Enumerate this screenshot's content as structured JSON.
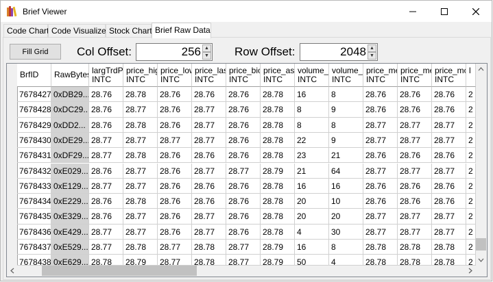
{
  "window": {
    "title": "Brief Viewer"
  },
  "tabs": [
    "Code Chart",
    "Code Visualizer",
    "Stock Chart",
    "Brief Raw Data"
  ],
  "toolbar": {
    "fill_grid": "Fill Grid",
    "col_offset_label": "Col Offset:",
    "col_offset_value": "256",
    "row_offset_label": "Row Offset:",
    "row_offset_value": "2048"
  },
  "grid": {
    "columns": [
      {
        "name": "BrfID",
        "type": ""
      },
      {
        "name": "RawBytes",
        "type": ""
      },
      {
        "name": "largTrdPr",
        "type": "INTC"
      },
      {
        "name": "price_hig",
        "type": "INTC"
      },
      {
        "name": "price_low",
        "type": "INTC"
      },
      {
        "name": "price_las",
        "type": "INTC"
      },
      {
        "name": "price_bic",
        "type": "INTC"
      },
      {
        "name": "price_ask",
        "type": "INTC"
      },
      {
        "name": "volume_l",
        "type": "INTC"
      },
      {
        "name": "volume_a",
        "type": "INTC"
      },
      {
        "name": "price_me",
        "type": "INTC"
      },
      {
        "name": "price_me",
        "type": "INTC"
      },
      {
        "name": "price_mc",
        "type": "INTC"
      },
      {
        "name": "l",
        "type": ""
      }
    ],
    "rows": [
      [
        "7678427",
        "0xDB29...",
        "28.76",
        "28.78",
        "28.76",
        "28.76",
        "28.76",
        "28.78",
        "16",
        "8",
        "28.76",
        "28.76",
        "28.76",
        "2"
      ],
      [
        "7678428",
        "0xDC29...",
        "28.76",
        "28.77",
        "28.76",
        "28.77",
        "28.76",
        "28.78",
        "8",
        "9",
        "28.76",
        "28.76",
        "28.76",
        "2"
      ],
      [
        "7678429",
        "0xDD2...",
        "28.76",
        "28.78",
        "28.76",
        "28.77",
        "28.76",
        "28.78",
        "8",
        "8",
        "28.77",
        "28.77",
        "28.77",
        "2"
      ],
      [
        "7678430",
        "0xDE29...",
        "28.77",
        "28.77",
        "28.77",
        "28.77",
        "28.76",
        "28.78",
        "22",
        "9",
        "28.77",
        "28.77",
        "28.77",
        "2"
      ],
      [
        "7678431",
        "0xDF29...",
        "28.77",
        "28.78",
        "28.76",
        "28.76",
        "28.76",
        "28.78",
        "23",
        "21",
        "28.76",
        "28.76",
        "28.76",
        "2"
      ],
      [
        "7678432",
        "0xE029...",
        "28.76",
        "28.77",
        "28.76",
        "28.77",
        "28.77",
        "28.79",
        "21",
        "64",
        "28.77",
        "28.77",
        "28.77",
        "2"
      ],
      [
        "7678433",
        "0xE129...",
        "28.77",
        "28.77",
        "28.76",
        "28.76",
        "28.76",
        "28.78",
        "16",
        "16",
        "28.76",
        "28.76",
        "28.76",
        "2"
      ],
      [
        "7678434",
        "0xE229...",
        "28.76",
        "28.78",
        "28.76",
        "28.76",
        "28.76",
        "28.78",
        "20",
        "10",
        "28.76",
        "28.76",
        "28.76",
        "2"
      ],
      [
        "7678435",
        "0xE329...",
        "28.76",
        "28.77",
        "28.76",
        "28.77",
        "28.76",
        "28.78",
        "20",
        "20",
        "28.77",
        "28.77",
        "28.77",
        "2"
      ],
      [
        "7678436",
        "0xE429...",
        "28.77",
        "28.77",
        "28.76",
        "28.77",
        "28.76",
        "28.78",
        "4",
        "30",
        "28.77",
        "28.77",
        "28.77",
        "2"
      ],
      [
        "7678437",
        "0xE529...",
        "28.77",
        "28.78",
        "28.77",
        "28.78",
        "28.77",
        "28.79",
        "16",
        "8",
        "28.78",
        "28.78",
        "28.78",
        "2"
      ],
      [
        "7678438",
        "0xE629...",
        "28.78",
        "28.79",
        "28.77",
        "28.78",
        "28.77",
        "28.79",
        "50",
        "4",
        "28.78",
        "28.78",
        "28.78",
        "2"
      ]
    ]
  },
  "scroll": {
    "horizontal_position": 0.08,
    "vertical_position": 0.98
  },
  "colors": {
    "raw_bytes_column": "#d3d3d3",
    "selected_tab_bg": "#ffffff"
  }
}
